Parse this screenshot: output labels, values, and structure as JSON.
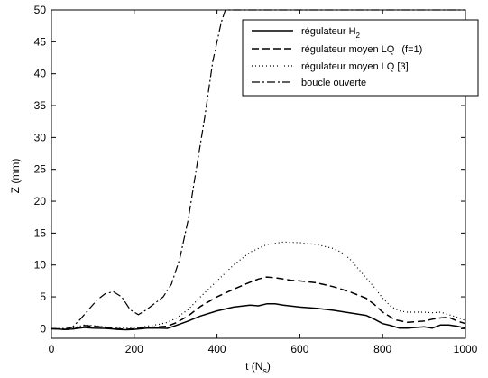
{
  "chart_data": {
    "type": "line",
    "title": "",
    "xlabel": "t (N",
    "xlabel_sub": "s",
    "xlabel_close": ")",
    "ylabel": "Z (mm)",
    "xlim": [
      0,
      1000
    ],
    "ylim": [
      -1.5,
      50
    ],
    "xticks": [
      0,
      200,
      400,
      600,
      800,
      1000
    ],
    "yticks": [
      0,
      5,
      10,
      15,
      20,
      25,
      30,
      35,
      40,
      45,
      50
    ],
    "grid": false,
    "legend_position": "top-right",
    "series": [
      {
        "name": "régulateur H",
        "name_sub": "2",
        "name_suffix": "",
        "line_style": "solid",
        "x": [
          0,
          30,
          50,
          80,
          100,
          130,
          160,
          180,
          200,
          230,
          260,
          280,
          300,
          330,
          360,
          400,
          440,
          480,
          500,
          520,
          540,
          560,
          600,
          640,
          680,
          720,
          760,
          780,
          800,
          820,
          840,
          860,
          880,
          900,
          920,
          940,
          960,
          980,
          1000
        ],
        "y": [
          0,
          -0.1,
          -0.05,
          0.2,
          0.1,
          0.05,
          -0.1,
          -0.15,
          -0.1,
          0.1,
          0.1,
          0.05,
          0.5,
          1.2,
          2.0,
          2.8,
          3.4,
          3.7,
          3.6,
          3.9,
          3.9,
          3.7,
          3.4,
          3.2,
          2.9,
          2.5,
          2.1,
          1.5,
          0.8,
          0.5,
          0.1,
          0.1,
          0.2,
          0.3,
          0.1,
          0.6,
          0.6,
          0.4,
          0.1
        ]
      },
      {
        "name": "régulateur moyen LQ",
        "name_sub": "",
        "name_suffix": "(f=1)",
        "line_style": "dashed",
        "x": [
          0,
          30,
          50,
          80,
          100,
          130,
          160,
          180,
          200,
          230,
          260,
          280,
          300,
          330,
          360,
          400,
          440,
          480,
          500,
          520,
          540,
          560,
          580,
          600,
          640,
          680,
          720,
          760,
          780,
          800,
          830,
          860,
          880,
          900,
          920,
          940,
          960,
          980,
          1000
        ],
        "y": [
          0,
          -0.1,
          -0.1,
          0.5,
          0.4,
          0.2,
          0,
          -0.1,
          0,
          0.2,
          0.3,
          0.4,
          0.9,
          2.0,
          3.5,
          5.0,
          6.2,
          7.3,
          7.8,
          8.1,
          8.0,
          7.8,
          7.6,
          7.5,
          7.2,
          6.6,
          5.8,
          4.8,
          3.8,
          2.6,
          1.4,
          1.0,
          1.1,
          1.2,
          1.5,
          1.7,
          1.8,
          1.2,
          0.8
        ]
      },
      {
        "name": "régulateur moyen LQ [3]",
        "name_sub": "",
        "name_suffix": "",
        "line_style": "dotted",
        "x": [
          0,
          30,
          50,
          80,
          100,
          130,
          160,
          180,
          200,
          230,
          260,
          280,
          300,
          330,
          360,
          400,
          440,
          480,
          520,
          560,
          600,
          640,
          680,
          700,
          720,
          740,
          760,
          780,
          800,
          820,
          840,
          860,
          880,
          900,
          920,
          940,
          960,
          980,
          1000
        ],
        "y": [
          0,
          0,
          0.1,
          0.6,
          0.5,
          0.3,
          0.2,
          0.1,
          0.1,
          0.4,
          0.7,
          1.0,
          1.6,
          3.0,
          5.0,
          7.5,
          10.0,
          12.0,
          13.2,
          13.6,
          13.5,
          13.2,
          12.6,
          12.0,
          11.0,
          9.5,
          8.0,
          6.5,
          4.8,
          3.5,
          2.8,
          2.6,
          2.6,
          2.6,
          2.5,
          2.6,
          2.2,
          1.8,
          1.3
        ]
      },
      {
        "name": "boucle ouverte",
        "name_sub": "",
        "name_suffix": "",
        "line_style": "dashdot",
        "x": [
          0,
          30,
          50,
          70,
          90,
          110,
          130,
          150,
          170,
          190,
          210,
          230,
          250,
          270,
          290,
          310,
          330,
          350,
          370,
          390,
          410,
          420,
          1000
        ],
        "y": [
          0,
          0,
          0.2,
          1.5,
          3.0,
          4.5,
          5.5,
          5.8,
          5.0,
          3.0,
          2.2,
          3.0,
          4.0,
          5.0,
          7.0,
          11.0,
          17.0,
          25.0,
          33.0,
          42.0,
          48.0,
          50.0,
          50.0
        ]
      }
    ]
  }
}
